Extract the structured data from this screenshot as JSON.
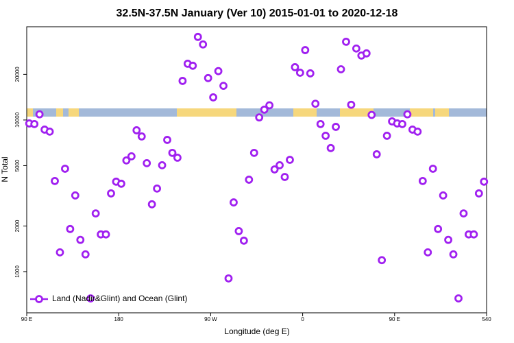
{
  "chart_data": {
    "type": "scatter",
    "title": "32.5N-37.5N January (Ver 10)   2015-01-01 to 2020-12-18",
    "x_label": "Longitude (deg E)",
    "y_label": "N Total",
    "log_y": true,
    "legend": "bottom-left",
    "xlim": [
      90,
      540
    ],
    "xticks": [
      {
        "value": 90,
        "label": "90 E"
      },
      180,
      {
        "value": 270,
        "label": "90 W"
      },
      {
        "value": 360,
        "label": "0"
      },
      {
        "value": 450,
        "label": "90 E"
      },
      540
    ],
    "ylim": [
      535,
      41200
    ],
    "yticks": [
      1000,
      2000,
      5000,
      10000,
      20000
    ],
    "x": [
      92.5,
      97.5,
      102.5,
      107.5,
      112.5,
      117.5,
      122.5,
      127.5,
      132.5,
      137.5,
      142.5,
      147.5,
      152.5,
      157.5,
      162.5,
      167.5,
      172.5,
      177.5,
      182.5,
      187.5,
      192.5,
      197.5,
      202.5,
      207.5,
      212.5,
      217.5,
      222.5,
      227.5,
      232.5,
      237.5,
      242.5,
      247.5,
      252.5,
      257.5,
      262.5,
      267.5,
      272.5,
      277.5,
      282.5,
      287.5,
      292.5,
      297.5,
      302.5,
      307.5,
      312.5,
      317.5,
      322.5,
      327.5,
      332.5,
      337.5,
      342.5,
      347.5,
      352.5,
      357.5,
      362.5,
      367.5,
      372.5,
      377.5,
      382.5,
      387.5,
      392.5,
      397.5,
      402.5,
      407.5,
      412.5,
      417.5,
      422.5,
      427.5,
      432.5,
      437.5,
      442.5,
      447.5,
      452.5,
      457.5,
      462.5,
      467.5,
      472.5,
      477.5,
      482.5,
      487.5,
      492.5,
      497.5,
      502.5,
      507.5,
      512.5,
      517.5,
      522.5,
      527.5,
      532.5,
      537.5
    ],
    "series": [
      {
        "name": "Land (Nadir&Glint) and Ocean (Glint)",
        "color": "#a020f0",
        "values": [
          9490,
          9400,
          10900,
          8640,
          8380,
          3960,
          1340,
          4770,
          1910,
          3180,
          1620,
          1300,
          666,
          2420,
          1760,
          1760,
          3280,
          3920,
          3800,
          5410,
          5760,
          8550,
          7790,
          5190,
          2780,
          3530,
          5030,
          7390,
          6070,
          5640,
          18100,
          23500,
          22800,
          35300,
          31500,
          18900,
          14100,
          21000,
          16800,
          902,
          2860,
          1850,
          1600,
          4040,
          6070,
          10400,
          11700,
          12500,
          4720,
          5030,
          4210,
          5460,
          22300,
          20500,
          28900,
          20300,
          12800,
          9400,
          7870,
          6530,
          9010,
          21600,
          32800,
          12600,
          29600,
          26600,
          27500,
          10800,
          5940,
          1190,
          7870,
          9790,
          9490,
          9400,
          10900,
          8640,
          8380,
          3960,
          1340,
          4770,
          1910,
          3180,
          1620,
          1300,
          666,
          2420,
          1760,
          1760,
          3280,
          3920
        ]
      }
    ]
  }
}
